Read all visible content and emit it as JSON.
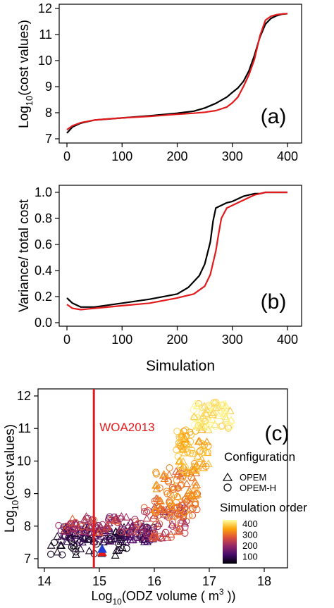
{
  "chart_data": [
    {
      "panel_label": "(a)",
      "type": "line",
      "xlabel": "",
      "ylabel_base": "Log",
      "ylabel_sub": "10",
      "ylabel_rest": "(cost values)",
      "xlim": [
        0,
        400
      ],
      "ylim": [
        7,
        12
      ],
      "xticks": [
        0,
        100,
        200,
        300,
        400
      ],
      "yticks": [
        7,
        8,
        9,
        10,
        11,
        12
      ],
      "grid": false,
      "series": [
        {
          "color": "#000000",
          "x": [
            0,
            10,
            25,
            50,
            100,
            150,
            200,
            230,
            250,
            270,
            290,
            300,
            310,
            320,
            330,
            340,
            350,
            360,
            370,
            380,
            390,
            400
          ],
          "y": [
            7.22,
            7.45,
            7.6,
            7.72,
            7.8,
            7.88,
            7.98,
            8.06,
            8.18,
            8.36,
            8.6,
            8.78,
            8.95,
            9.2,
            9.6,
            10.2,
            10.9,
            11.4,
            11.62,
            11.72,
            11.78,
            11.8
          ]
        },
        {
          "color": "#e31a1c",
          "x": [
            0,
            10,
            25,
            50,
            100,
            150,
            200,
            230,
            250,
            270,
            290,
            300,
            310,
            320,
            330,
            340,
            350,
            360,
            370,
            380,
            390,
            400
          ],
          "y": [
            7.35,
            7.5,
            7.62,
            7.72,
            7.8,
            7.86,
            7.94,
            7.98,
            8.02,
            8.08,
            8.22,
            8.38,
            8.6,
            9.0,
            9.45,
            10.05,
            10.95,
            11.55,
            11.7,
            11.76,
            11.79,
            11.8
          ]
        }
      ]
    },
    {
      "panel_label": "(b)",
      "type": "line",
      "xlabel": "Simulation",
      "ylabel": "Variance/ total cost",
      "xlim": [
        0,
        400
      ],
      "ylim": [
        0,
        1
      ],
      "xticks": [
        0,
        100,
        200,
        300,
        400
      ],
      "yticks": [
        0.0,
        0.2,
        0.4,
        0.6,
        0.8,
        1.0
      ],
      "ytick_labels": [
        "0.0",
        "0.2",
        "0.4",
        "0.6",
        "0.8",
        "1.0"
      ],
      "grid": false,
      "series": [
        {
          "color": "#000000",
          "x": [
            0,
            10,
            25,
            50,
            100,
            150,
            200,
            220,
            240,
            250,
            260,
            265,
            270,
            280,
            290,
            300,
            310,
            320,
            330,
            340,
            350,
            360,
            380,
            400
          ],
          "y": [
            0.19,
            0.15,
            0.12,
            0.12,
            0.15,
            0.18,
            0.22,
            0.27,
            0.36,
            0.45,
            0.62,
            0.78,
            0.88,
            0.9,
            0.92,
            0.93,
            0.95,
            0.97,
            0.98,
            0.99,
            0.99,
            1.0,
            1.0,
            1.0
          ]
        },
        {
          "color": "#e31a1c",
          "x": [
            0,
            10,
            25,
            50,
            100,
            150,
            200,
            230,
            250,
            260,
            270,
            275,
            280,
            290,
            300,
            310,
            320,
            330,
            340,
            350,
            360,
            380,
            400
          ],
          "y": [
            0.14,
            0.11,
            0.1,
            0.11,
            0.13,
            0.15,
            0.19,
            0.22,
            0.28,
            0.37,
            0.55,
            0.68,
            0.8,
            0.88,
            0.9,
            0.92,
            0.94,
            0.96,
            0.98,
            0.99,
            1.0,
            1.0,
            1.0
          ]
        }
      ]
    },
    {
      "panel_label": "(c)",
      "type": "scatter",
      "xlabel_base": "Log",
      "xlabel_sub": "10",
      "xlabel_rest": "(ODZ volume ( m",
      "xlabel_sup": "3",
      "xlabel_end": " ))",
      "ylabel_base": "Log",
      "ylabel_sub": "10",
      "ylabel_rest": "(cost values)",
      "xlim": [
        14,
        18
      ],
      "ylim": [
        7,
        12
      ],
      "xticks": [
        14,
        15,
        16,
        17,
        18
      ],
      "yticks": [
        7,
        8,
        9,
        10,
        11,
        12
      ],
      "grid": false,
      "reference_line": {
        "x": 14.9,
        "label": "WOA2013",
        "color": "#e31a1c"
      },
      "legend_shape": {
        "title": "Configuration",
        "items": [
          {
            "label": "OPEM",
            "shape": "triangle"
          },
          {
            "label": "OPEM-H",
            "shape": "circle"
          }
        ]
      },
      "legend_color": {
        "title": "Simulation order",
        "ticks": [
          100,
          200,
          300,
          400
        ],
        "range": [
          0,
          400
        ],
        "colormap": [
          "#000004",
          "#420a68",
          "#932667",
          "#dd513a",
          "#fca50a",
          "#fcffa4"
        ]
      },
      "highlight_points": [
        {
          "x": 15.05,
          "y": 7.2,
          "shape": "triangle",
          "color": "#e31a1c"
        },
        {
          "x": 15.05,
          "y": 7.3,
          "shape": "triangle",
          "color": "#1f3fd6"
        }
      ],
      "clusters": [
        {
          "x_range": [
            14.1,
            15.5
          ],
          "y_range": [
            7.1,
            7.8
          ],
          "order_range": [
            0,
            30
          ],
          "n": 40
        },
        {
          "x_range": [
            14.3,
            16.0
          ],
          "y_range": [
            7.5,
            8.0
          ],
          "order_range": [
            20,
            120
          ],
          "n": 130
        },
        {
          "x_range": [
            14.2,
            15.8
          ],
          "y_range": [
            7.8,
            8.3
          ],
          "order_range": [
            120,
            260
          ],
          "n": 90
        },
        {
          "x_range": [
            15.8,
            16.6
          ],
          "y_range": [
            7.6,
            8.6
          ],
          "order_range": [
            150,
            270
          ],
          "n": 70
        },
        {
          "x_range": [
            16.0,
            16.8
          ],
          "y_range": [
            8.3,
            9.8
          ],
          "order_range": [
            240,
            320
          ],
          "n": 110
        },
        {
          "x_range": [
            16.4,
            17.0
          ],
          "y_range": [
            9.6,
            11.0
          ],
          "order_range": [
            300,
            360
          ],
          "n": 70
        },
        {
          "x_range": [
            16.7,
            17.4
          ],
          "y_range": [
            11.0,
            11.8
          ],
          "order_range": [
            350,
            400
          ],
          "n": 70
        }
      ]
    }
  ]
}
